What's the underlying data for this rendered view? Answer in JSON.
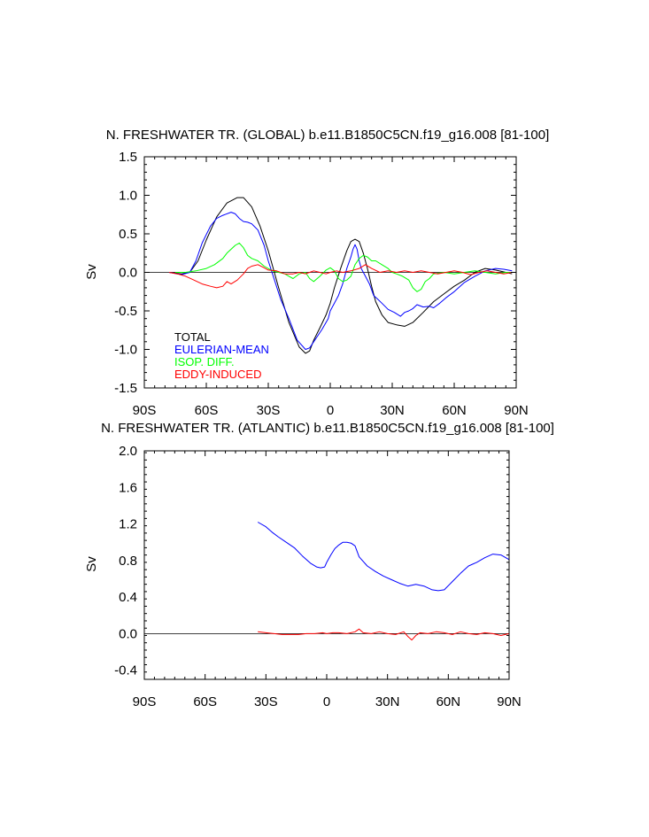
{
  "chart_data": [
    {
      "type": "line",
      "title": "N. FRESHWATER TR. (GLOBAL) b.e11.B1850C5CN.f19_g16.008 [81-100]",
      "ylabel": "Sv",
      "xlabel": "",
      "xlim": [
        -90,
        90
      ],
      "ylim": [
        -1.5,
        1.5
      ],
      "x_ticks": [
        -90,
        -60,
        -30,
        0,
        30,
        60,
        90
      ],
      "x_tick_labels": [
        "90S",
        "60S",
        "30S",
        "0",
        "30N",
        "60N",
        "90N"
      ],
      "y_ticks": [
        -1.5,
        -1.0,
        -0.5,
        0.0,
        0.5,
        1.0,
        1.5
      ],
      "y_tick_labels": [
        "-1.5",
        "-1.0",
        "-0.5",
        "0.0",
        "0.5",
        "1.0",
        "1.5"
      ],
      "zero_line": true,
      "grid": false,
      "legend_position": "bottom-left",
      "series": [
        {
          "name": "TOTAL",
          "color": "#000000",
          "x": [
            -78,
            -72,
            -68,
            -64,
            -60,
            -55,
            -50,
            -45,
            -42,
            -38,
            -34,
            -30,
            -25,
            -20,
            -15,
            -12,
            -10,
            -8,
            -5,
            -2,
            0,
            2,
            5,
            8,
            10,
            12,
            14,
            16,
            18,
            20,
            22,
            25,
            28,
            32,
            36,
            40,
            45,
            50,
            55,
            60,
            65,
            70,
            75,
            80,
            85,
            88
          ],
          "y": [
            0,
            -0.02,
            0,
            0.15,
            0.42,
            0.72,
            0.9,
            0.97,
            0.97,
            0.85,
            0.6,
            0.28,
            -0.2,
            -0.65,
            -0.97,
            -1.05,
            -1.02,
            -0.88,
            -0.72,
            -0.55,
            -0.4,
            -0.2,
            0.05,
            0.28,
            0.4,
            0.43,
            0.4,
            0.25,
            0.05,
            -0.18,
            -0.38,
            -0.55,
            -0.65,
            -0.68,
            -0.7,
            -0.65,
            -0.52,
            -0.38,
            -0.28,
            -0.18,
            -0.1,
            0.0,
            0.05,
            0.03,
            0.0,
            -0.02
          ]
        },
        {
          "name": "EULERIAN-MEAN",
          "color": "#0000ff",
          "x": [
            -78,
            -72,
            -68,
            -65,
            -62,
            -58,
            -55,
            -52,
            -48,
            -46,
            -44,
            -42,
            -40,
            -38,
            -35,
            -32,
            -30,
            -27,
            -24,
            -20,
            -16,
            -12,
            -10,
            -7,
            -4,
            -1,
            0,
            2,
            4,
            6,
            8,
            10,
            11,
            12,
            13,
            14,
            15,
            17,
            19,
            21,
            23,
            25,
            28,
            31,
            34,
            36,
            38,
            40,
            42,
            45,
            48,
            50,
            53,
            56,
            60,
            65,
            70,
            75,
            80,
            84,
            88
          ],
          "y": [
            0,
            -0.03,
            0,
            0.15,
            0.38,
            0.6,
            0.7,
            0.74,
            0.78,
            0.76,
            0.7,
            0.66,
            0.65,
            0.63,
            0.55,
            0.35,
            0.15,
            -0.1,
            -0.35,
            -0.6,
            -0.88,
            -1.0,
            -0.98,
            -0.86,
            -0.74,
            -0.6,
            -0.5,
            -0.4,
            -0.3,
            -0.15,
            0.05,
            0.2,
            0.3,
            0.36,
            0.3,
            0.15,
            0.05,
            -0.05,
            -0.15,
            -0.3,
            -0.35,
            -0.4,
            -0.48,
            -0.52,
            -0.57,
            -0.52,
            -0.5,
            -0.47,
            -0.42,
            -0.45,
            -0.44,
            -0.46,
            -0.4,
            -0.33,
            -0.25,
            -0.13,
            -0.05,
            0.02,
            0.05,
            0.04,
            0.02
          ]
        },
        {
          "name": "ISOP. DIFF.",
          "color": "#00ff00",
          "x": [
            -75,
            -70,
            -65,
            -60,
            -56,
            -52,
            -50,
            -48,
            -46,
            -44,
            -42,
            -40,
            -38,
            -35,
            -32,
            -28,
            -25,
            -22,
            -20,
            -18,
            -15,
            -12,
            -10,
            -8,
            -5,
            -2,
            0,
            2,
            4,
            6,
            8,
            10,
            12,
            14,
            16,
            18,
            20,
            22,
            25,
            28,
            30,
            32,
            35,
            38,
            40,
            42,
            44,
            46,
            48,
            50,
            55,
            60,
            65,
            70,
            75,
            80,
            85,
            88
          ],
          "y": [
            0,
            0,
            0.02,
            0.05,
            0.1,
            0.18,
            0.25,
            0.3,
            0.35,
            0.38,
            0.32,
            0.22,
            0.18,
            0.15,
            0.08,
            0.02,
            0.0,
            -0.02,
            -0.05,
            -0.08,
            -0.02,
            0.0,
            -0.08,
            -0.12,
            -0.05,
            0.03,
            0.06,
            0.02,
            -0.08,
            -0.12,
            -0.1,
            -0.05,
            0.1,
            0.18,
            0.22,
            0.2,
            0.15,
            0.15,
            0.1,
            0.05,
            0.0,
            -0.02,
            -0.05,
            -0.1,
            -0.2,
            -0.25,
            -0.22,
            -0.12,
            -0.08,
            -0.02,
            0.0,
            -0.02,
            0.0,
            0.02,
            0.0,
            -0.02,
            0.0,
            0.0
          ]
        },
        {
          "name": "EDDY-INDUCED",
          "color": "#ff0000",
          "x": [
            -78,
            -74,
            -70,
            -66,
            -62,
            -58,
            -55,
            -52,
            -50,
            -48,
            -45,
            -42,
            -40,
            -38,
            -35,
            -32,
            -30,
            -26,
            -22,
            -18,
            -15,
            -12,
            -10,
            -8,
            -5,
            -2,
            0,
            3,
            6,
            10,
            14,
            17,
            20,
            24,
            28,
            32,
            36,
            40,
            44,
            48,
            52,
            56,
            60,
            64,
            68,
            72,
            76,
            80,
            84,
            88
          ],
          "y": [
            0,
            -0.02,
            -0.05,
            -0.1,
            -0.15,
            -0.18,
            -0.2,
            -0.18,
            -0.12,
            -0.15,
            -0.1,
            -0.02,
            0.05,
            0.08,
            0.1,
            0.06,
            0.03,
            0.02,
            -0.02,
            -0.02,
            0.0,
            -0.02,
            0.0,
            0.02,
            0.0,
            -0.02,
            0.0,
            0.02,
            0.0,
            0.02,
            0.05,
            0.1,
            0.05,
            0.0,
            0.02,
            0.0,
            0.02,
            0.0,
            0.02,
            0.0,
            -0.02,
            0.0,
            0.02,
            0.0,
            -0.03,
            0.0,
            0.02,
            0.0,
            -0.02,
            0.0
          ]
        }
      ],
      "legend": [
        {
          "label": "TOTAL",
          "color": "#000000"
        },
        {
          "label": "EULERIAN-MEAN",
          "color": "#0000ff"
        },
        {
          "label": "ISOP. DIFF.",
          "color": "#00ff00"
        },
        {
          "label": "EDDY-INDUCED",
          "color": "#ff0000"
        }
      ]
    },
    {
      "type": "line",
      "title": "N. FRESHWATER TR. (ATLANTIC) b.e11.B1850C5CN.f19_g16.008 [81-100]",
      "ylabel": "Sv",
      "xlabel": "",
      "xlim": [
        -90,
        90
      ],
      "ylim": [
        -0.5,
        2.0
      ],
      "x_ticks": [
        -90,
        -60,
        -30,
        0,
        30,
        60,
        90
      ],
      "x_tick_labels": [
        "90S",
        "60S",
        "30S",
        "0",
        "30N",
        "60N",
        "90N"
      ],
      "y_ticks": [
        -0.4,
        0.0,
        0.4,
        0.8,
        1.2,
        1.6,
        2.0
      ],
      "y_tick_labels": [
        "-0.4",
        "0.0",
        "0.4",
        "0.8",
        "1.2",
        "1.6",
        "2.0"
      ],
      "zero_line": true,
      "grid": false,
      "series": [
        {
          "name": "",
          "color": "#0000ff",
          "x": [
            -34,
            -30,
            -27,
            -24,
            -20,
            -16,
            -12,
            -8,
            -5,
            -3,
            -1,
            0,
            2,
            4,
            6,
            8,
            10,
            12,
            14,
            16,
            20,
            24,
            28,
            32,
            36,
            40,
            44,
            48,
            52,
            55,
            58,
            62,
            66,
            70,
            74,
            78,
            82,
            86,
            90
          ],
          "y": [
            1.22,
            1.17,
            1.11,
            1.06,
            1.0,
            0.94,
            0.85,
            0.77,
            0.73,
            0.72,
            0.73,
            0.78,
            0.86,
            0.93,
            0.97,
            1.0,
            1.0,
            0.99,
            0.96,
            0.84,
            0.74,
            0.68,
            0.63,
            0.59,
            0.55,
            0.52,
            0.54,
            0.52,
            0.48,
            0.47,
            0.48,
            0.57,
            0.66,
            0.74,
            0.78,
            0.83,
            0.87,
            0.86,
            0.81
          ]
        },
        {
          "name": "",
          "color": "#ff0000",
          "x": [
            -34,
            -30,
            -26,
            -22,
            -18,
            -14,
            -10,
            -6,
            -2,
            0,
            3,
            6,
            10,
            14,
            16,
            18,
            22,
            26,
            30,
            34,
            38,
            40,
            42,
            44,
            46,
            50,
            54,
            58,
            62,
            66,
            70,
            74,
            78,
            82,
            86,
            90
          ],
          "y": [
            0.02,
            0.01,
            0.0,
            -0.01,
            -0.01,
            -0.01,
            0.0,
            0.0,
            0.01,
            0.0,
            0.01,
            0.01,
            0.0,
            0.02,
            0.05,
            0.01,
            0.0,
            0.02,
            0.0,
            -0.01,
            0.02,
            -0.03,
            -0.07,
            -0.02,
            0.01,
            0.0,
            0.02,
            0.01,
            -0.01,
            0.02,
            0.0,
            -0.01,
            0.01,
            0.0,
            -0.02,
            0.0
          ]
        }
      ]
    }
  ]
}
